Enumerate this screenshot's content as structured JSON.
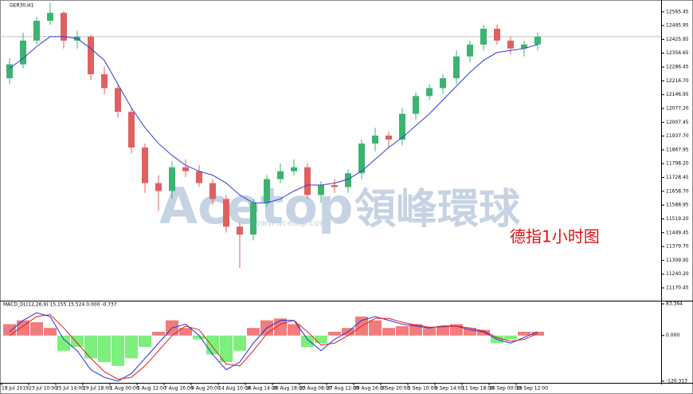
{
  "chart_data": [
    {
      "type": "candlestick",
      "title": "GER30,H1",
      "annotation": "德指1小时图",
      "watermark": [
        "Acetop",
        "領峰環球",
        "www.acetop.com"
      ],
      "categories": [
        "18 Jul 2019",
        null,
        "23 Jul 10:00",
        null,
        "25 Jul 14:00",
        null,
        "29 Jul 18:00",
        null,
        "1 Aug 00:00",
        null,
        "5 Aug 12:00",
        null,
        "7 Aug 16:00",
        null,
        "9 Aug 20:00",
        null,
        "14 Aug 10:00",
        null,
        "16 Aug 14:00",
        null,
        "20 Aug 18:00",
        null,
        "23 Aug 08:00",
        null,
        "27 Aug 12:00",
        null,
        "29 Aug 16:00",
        null,
        "2 Sep 20:00",
        null,
        "5 Sep 10:00",
        null,
        "9 Sep 14:00",
        null,
        "11 Sep 18:00",
        null,
        "16 Sep 00:00",
        null,
        "18 Sep 12:00",
        null
      ],
      "open": [
        12230,
        12300,
        12420,
        12520,
        12560,
        12420,
        12440,
        12250,
        12180,
        12060,
        11880,
        11700,
        11660,
        11780,
        11760,
        11700,
        11620,
        11480,
        11440,
        11600,
        11720,
        11760,
        11780,
        11640,
        11690,
        11680,
        11750,
        11900,
        11940,
        11920,
        12050,
        12140,
        12180,
        12230,
        12340,
        12400,
        12480,
        12420,
        12380,
        12400
      ],
      "high": [
        12330,
        12460,
        12540,
        12610,
        12570,
        12470,
        12450,
        12290,
        12200,
        12080,
        11900,
        11740,
        11810,
        11820,
        11790,
        11720,
        11640,
        11500,
        11620,
        11740,
        11800,
        11820,
        11800,
        11710,
        11720,
        11770,
        11920,
        11980,
        11960,
        12080,
        12160,
        12200,
        12250,
        12370,
        12420,
        12500,
        12500,
        12440,
        12420,
        12460
      ],
      "low": [
        12200,
        12280,
        12400,
        12500,
        12380,
        12380,
        12220,
        12150,
        12030,
        11850,
        11650,
        11560,
        11620,
        11730,
        11680,
        11590,
        11450,
        11270,
        11410,
        11580,
        11700,
        11740,
        11620,
        11600,
        11650,
        11650,
        11720,
        11860,
        11880,
        11890,
        12020,
        12120,
        12150,
        12200,
        12310,
        12370,
        12400,
        12350,
        12340,
        12370
      ],
      "close": [
        12300,
        12420,
        12520,
        12560,
        12420,
        12440,
        12250,
        12180,
        12060,
        11880,
        11700,
        11660,
        11780,
        11760,
        11700,
        11620,
        11480,
        11440,
        11600,
        11720,
        11760,
        11780,
        11640,
        11690,
        11680,
        11750,
        11900,
        11940,
        11920,
        12050,
        12140,
        12180,
        12230,
        12340,
        12400,
        12480,
        12420,
        12380,
        12400,
        12440
      ],
      "up_color": "#3cb371",
      "down_color": "#e06060",
      "series": [
        {
          "color": "#2f3fd0",
          "values": [
            12280,
            12330,
            12390,
            12440,
            12440,
            12430,
            12380,
            12320,
            12200,
            12080,
            11980,
            11900,
            11840,
            11790,
            11760,
            11740,
            11700,
            11640,
            11600,
            11600,
            11620,
            11660,
            11690,
            11690,
            11700,
            11720,
            11760,
            11820,
            11880,
            11930,
            11990,
            12050,
            12120,
            12190,
            12260,
            12320,
            12360,
            12370,
            12380,
            12400
          ]
        }
      ],
      "last_price": 12440,
      "ylim": [
        11110,
        12617
      ],
      "yticks": [
        12565.45,
        12495.95,
        12425.95,
        12356.65,
        12286.45,
        {
          "value": 12216.7,
          "label": "12216.70"
        },
        12146.95,
        {
          "value": 12077.2,
          "label": "12077.20"
        },
        12007.45,
        {
          "value": 11937.7,
          "label": "11937.70"
        },
        11867.95,
        {
          "value": 11798.2,
          "label": "11798.20"
        },
        11728.45,
        {
          "value": 11658.7,
          "label": "11658.70"
        },
        11588.95,
        {
          "value": 11519.2,
          "label": "11519.20"
        },
        11449.45,
        {
          "value": 11379.7,
          "label": "11379.70"
        },
        11309.95,
        {
          "value": 11240.2,
          "label": "11240.20"
        },
        11170.45
      ]
    },
    {
      "type": "macd",
      "title": "MACD_DL(12,26,9) 15.155 15.524 0.000 -0.737",
      "histogram": [
        30,
        40,
        35,
        20,
        -40,
        -30,
        -60,
        -70,
        -80,
        -60,
        -30,
        10,
        40,
        20,
        -10,
        -50,
        -70,
        -40,
        20,
        40,
        45,
        30,
        -30,
        -20,
        10,
        20,
        50,
        40,
        20,
        25,
        30,
        20,
        25,
        30,
        20,
        15,
        -20,
        -10,
        10,
        10
      ],
      "positive_color": "#f37b7b",
      "negative_color": "#7def7d",
      "series": [
        {
          "color": "#2030e0",
          "values": [
            10,
            40,
            60,
            50,
            -10,
            -40,
            -90,
            -110,
            -120,
            -100,
            -60,
            -20,
            20,
            30,
            0,
            -50,
            -90,
            -70,
            -20,
            20,
            40,
            40,
            -10,
            -40,
            -10,
            10,
            40,
            50,
            40,
            30,
            25,
            20,
            25,
            25,
            15,
            10,
            -10,
            -20,
            -5,
            10
          ]
        },
        {
          "color": "#e02020",
          "values": [
            0,
            25,
            50,
            55,
            20,
            -20,
            -60,
            -95,
            -115,
            -110,
            -80,
            -40,
            0,
            25,
            15,
            -30,
            -75,
            -80,
            -40,
            5,
            30,
            40,
            10,
            -25,
            -20,
            0,
            25,
            45,
            45,
            35,
            28,
            22,
            23,
            25,
            20,
            12,
            -5,
            -15,
            -10,
            5
          ]
        }
      ],
      "ylim": [
        -124.5,
        87.6
      ],
      "yticks": [
        83.364,
        {
          "value": 0,
          "label": "0.000"
        },
        -120.313
      ]
    }
  ]
}
